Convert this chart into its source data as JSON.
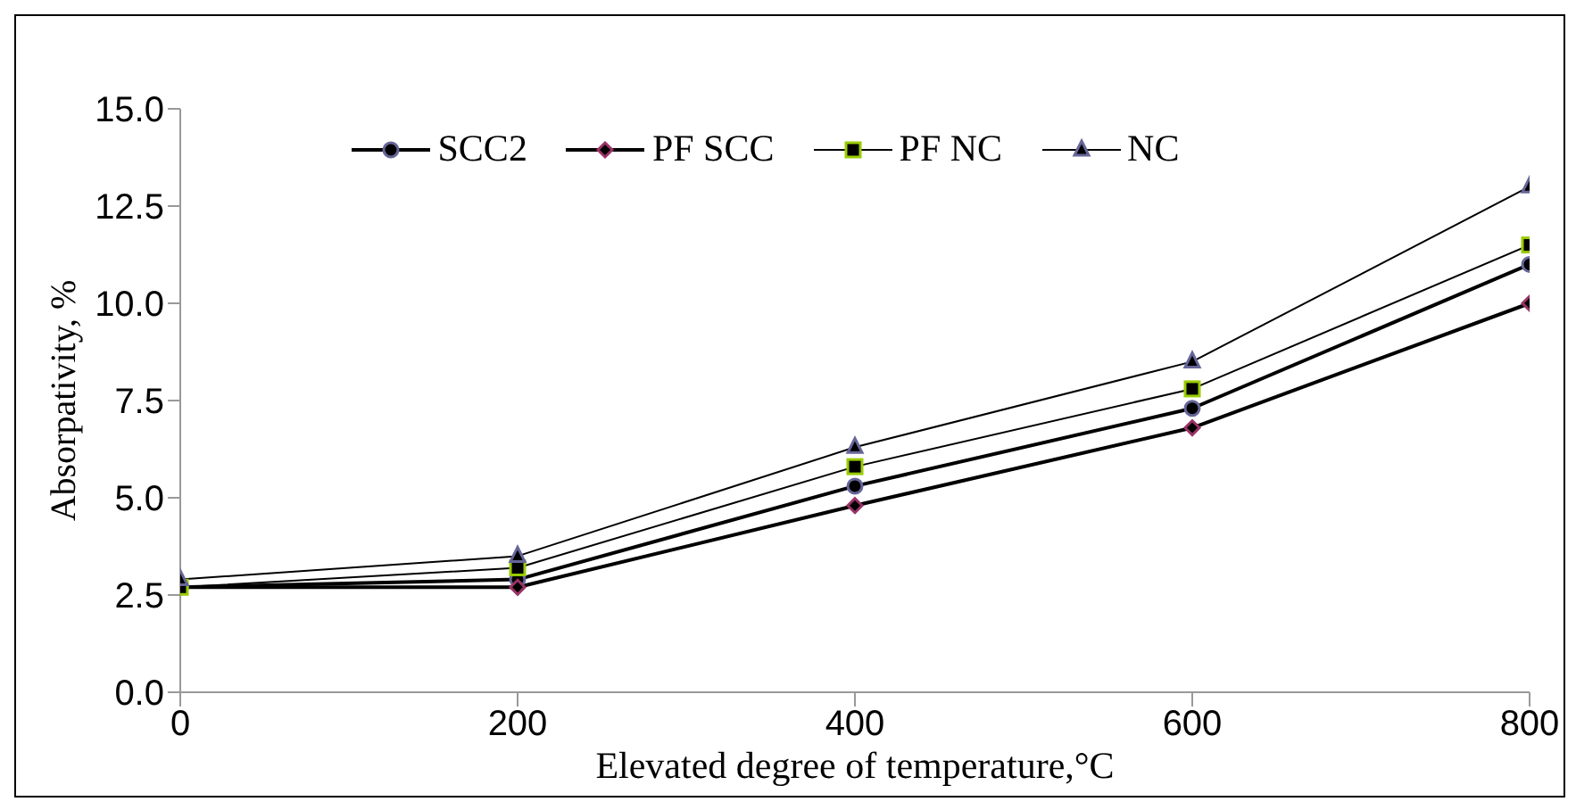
{
  "chart_data": {
    "type": "line",
    "xlabel": "Elevated degree of temperature,°C",
    "ylabel": "Absorpativity, %",
    "x": [
      0,
      200,
      400,
      600,
      800
    ],
    "series": [
      {
        "name": "SCC2",
        "color": "#000000",
        "marker": "circle",
        "values": [
          2.7,
          2.9,
          5.3,
          7.3,
          11.0
        ]
      },
      {
        "name": "PF SCC",
        "color": "#000000",
        "marker": "diamond",
        "values": [
          2.7,
          2.7,
          4.8,
          6.8,
          10.0
        ]
      },
      {
        "name": "PF NC",
        "color": "#000000",
        "marker": "square",
        "values": [
          2.7,
          3.2,
          5.8,
          7.8,
          11.5
        ]
      },
      {
        "name": "NC",
        "color": "#000000",
        "marker": "triangle",
        "values": [
          2.9,
          3.5,
          6.3,
          8.5,
          13.0
        ]
      }
    ],
    "xlim": [
      0,
      800
    ],
    "xticks": [
      0,
      200,
      400,
      600,
      800
    ],
    "ylim": [
      0,
      15
    ],
    "yticks": [
      {
        "value": 0,
        "label": "0.0"
      },
      {
        "value": 2.5,
        "label": "2.5"
      },
      {
        "value": 5,
        "label": "5.0"
      },
      {
        "value": 7.5,
        "label": "7.5"
      },
      {
        "value": 10,
        "label": "10.0"
      },
      {
        "value": 12.5,
        "label": "12.5"
      },
      {
        "value": 15,
        "label": "15.0"
      }
    ],
    "grid": false,
    "legend": "top",
    "line_style": "solid"
  }
}
